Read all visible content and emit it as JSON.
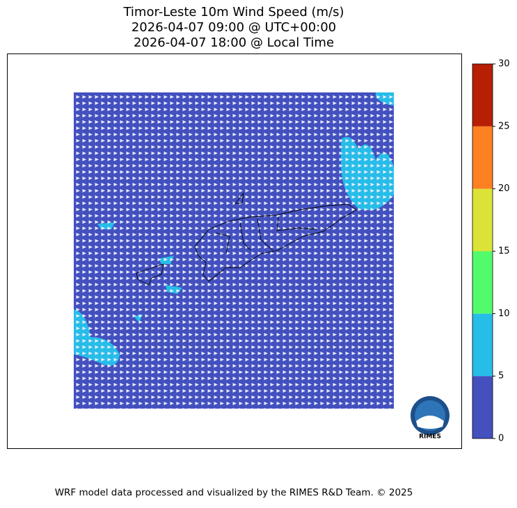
{
  "title": [
    "Timor-Leste 10m Wind Speed (m/s)",
    "2026-04-07 09:00 @ UTC+00:00",
    "2026-04-07 18:00 @ Local Time"
  ],
  "colorbar": {
    "range": [
      0,
      30
    ],
    "ticks": [
      0,
      5,
      10,
      15,
      20,
      25,
      30
    ],
    "colors": [
      "#4350be",
      "#26bde8",
      "#52fb6c",
      "#dbe336",
      "#fd8023",
      "#b71f05"
    ]
  },
  "logo": "RIMES",
  "footer": "WRF model data processed and visualized by the RIMES R&D Team. © 2025"
}
